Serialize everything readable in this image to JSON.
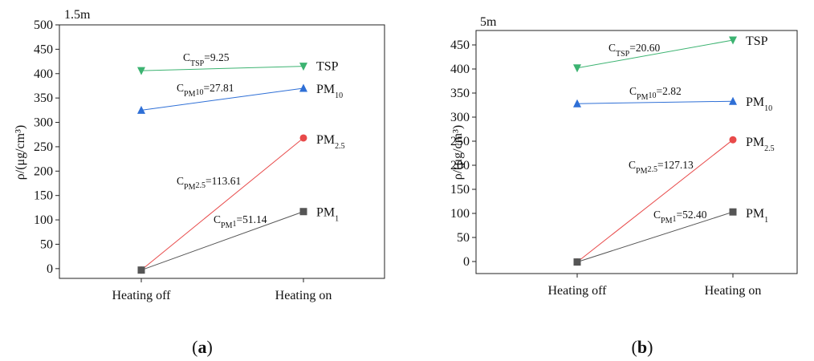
{
  "chart_data": [
    {
      "type": "line",
      "panel_label": "a",
      "height_label": "1.5m",
      "ylabel": "ρ/(μg/cm³)",
      "categories": [
        "Heating off",
        "Heating on"
      ],
      "ylim": [
        -20,
        500
      ],
      "yticks": [
        0,
        50,
        100,
        150,
        200,
        250,
        300,
        350,
        400,
        450,
        500
      ],
      "series": [
        {
          "name": "TSP",
          "main": "TSP",
          "sub": "",
          "marker": "triangle-down",
          "color": "#3cb371",
          "values": [
            406,
            415
          ],
          "coef": {
            "main": "C",
            "sub": "TSP",
            "value": "=9.25"
          }
        },
        {
          "name": "PM10",
          "main": "PM",
          "sub": "10",
          "marker": "triangle-up",
          "color": "#2e6fd6",
          "values": [
            325,
            370
          ],
          "coef": {
            "main": "C",
            "sub": "PM10",
            "value": "=27.81"
          }
        },
        {
          "name": "PM2.5",
          "main": "PM",
          "sub": "2.5",
          "marker": "circle",
          "color": "#e84a4a",
          "values": [
            -3,
            268
          ],
          "coef": {
            "main": "C",
            "sub": "PM2.5",
            "value": "=113.61"
          }
        },
        {
          "name": "PM1",
          "main": "PM",
          "sub": "1",
          "marker": "square",
          "color": "#555555",
          "values": [
            -3,
            117
          ],
          "coef": {
            "main": "C",
            "sub": "PM1",
            "value": "=51.14"
          }
        }
      ]
    },
    {
      "type": "line",
      "panel_label": "b",
      "height_label": "5m",
      "ylabel": "ρ/(μg/cm³)",
      "categories": [
        "Heating off",
        "Heating on"
      ],
      "ylim": [
        -25,
        480
      ],
      "yticks": [
        0,
        50,
        100,
        150,
        200,
        250,
        300,
        350,
        400,
        450
      ],
      "series": [
        {
          "name": "TSP",
          "main": "TSP",
          "sub": "",
          "marker": "triangle-down",
          "color": "#3cb371",
          "values": [
            402,
            460
          ],
          "coef": {
            "main": "C",
            "sub": "TSP",
            "value": "=20.60"
          }
        },
        {
          "name": "PM10",
          "main": "PM",
          "sub": "10",
          "marker": "triangle-up",
          "color": "#2e6fd6",
          "values": [
            328,
            333
          ],
          "coef": {
            "main": "C",
            "sub": "PM10",
            "value": "=2.82"
          }
        },
        {
          "name": "PM2.5",
          "main": "PM",
          "sub": "2.5",
          "marker": "circle",
          "color": "#e84a4a",
          "values": [
            -1,
            253
          ],
          "coef": {
            "main": "C",
            "sub": "PM2.5",
            "value": "=127.13"
          }
        },
        {
          "name": "PM1",
          "main": "PM",
          "sub": "1",
          "marker": "square",
          "color": "#555555",
          "values": [
            -1,
            103
          ],
          "coef": {
            "main": "C",
            "sub": "PM1",
            "value": "=52.40"
          }
        }
      ]
    }
  ]
}
